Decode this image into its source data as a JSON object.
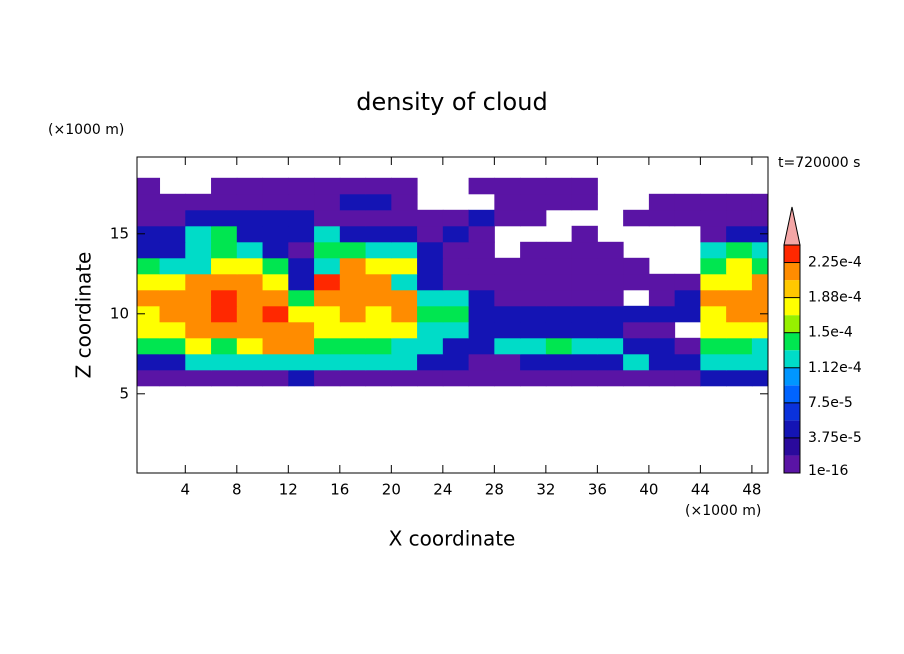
{
  "chart_data": {
    "type": "contour",
    "title": "density of cloud",
    "x_label": "X coordinate",
    "y_label": "Z coordinate",
    "x_unit": "(×1000 m)",
    "y_unit": "(×1000 m)",
    "time_label": "t=720000 s",
    "xlim": [
      0.25,
      49.25
    ],
    "ylim": [
      0.05,
      19.8
    ],
    "xticks": [
      4,
      8,
      12,
      16,
      20,
      24,
      28,
      32,
      36,
      40,
      44,
      48
    ],
    "yticks": [
      5,
      10,
      15
    ],
    "x": [
      1,
      3,
      5,
      7,
      9,
      11,
      13,
      15,
      17,
      19,
      21,
      23,
      25,
      27,
      29,
      31,
      33,
      35,
      37,
      39,
      41,
      43,
      45,
      47,
      49
    ],
    "y": [
      6,
      7,
      8,
      9,
      10,
      11,
      12,
      13,
      14,
      15,
      16,
      17,
      18
    ],
    "values": [
      [
        1e-05,
        1e-05,
        1e-05,
        1e-05,
        1e-05,
        1e-05,
        4.5e-05,
        1e-05,
        1e-05,
        1e-05,
        1e-05,
        1e-05,
        1e-05,
        1e-05,
        1e-05,
        1e-05,
        1e-05,
        1e-05,
        1e-05,
        1e-05,
        1e-05,
        1e-05,
        4.5e-05,
        4.5e-05,
        4.5e-05
      ],
      [
        4.5e-05,
        4.5e-05,
        0.000115,
        0.000115,
        0.000115,
        0.000115,
        0.000115,
        0.000115,
        0.000115,
        0.000115,
        0.000115,
        4.5e-05,
        4.5e-05,
        1e-05,
        1e-05,
        4.5e-05,
        4.5e-05,
        4.5e-05,
        4.5e-05,
        0.000115,
        4.5e-05,
        4.5e-05,
        0.000115,
        0.000115,
        0.000115
      ],
      [
        0.00014,
        0.00014,
        0.000175,
        0.00014,
        0.000175,
        0.00021,
        0.00021,
        0.00014,
        0.00014,
        0.00014,
        0.000115,
        0.000115,
        4.5e-05,
        4.5e-05,
        0.000115,
        0.000115,
        0.00014,
        0.000115,
        0.000115,
        4.5e-05,
        4.5e-05,
        1e-05,
        0.00014,
        0.00014,
        0.000115
      ],
      [
        0.000175,
        0.000175,
        0.00021,
        0.00021,
        0.00021,
        0.00021,
        0.00021,
        0.000175,
        0.000175,
        0.000175,
        0.000175,
        0.000115,
        0.000115,
        4.5e-05,
        4.5e-05,
        4.5e-05,
        4.5e-05,
        4.5e-05,
        4.5e-05,
        1e-05,
        1e-05,
        null,
        0.000175,
        0.000175,
        0.000175
      ],
      [
        0.000175,
        0.00021,
        0.00021,
        0.00023,
        0.00021,
        0.00023,
        0.000175,
        0.000175,
        0.00021,
        0.000175,
        0.00021,
        0.00014,
        0.00014,
        4.5e-05,
        4.5e-05,
        4.5e-05,
        4.5e-05,
        4.5e-05,
        4.5e-05,
        4.5e-05,
        4.5e-05,
        4.5e-05,
        0.000175,
        0.00021,
        0.00021
      ],
      [
        0.00021,
        0.00021,
        0.00021,
        0.00023,
        0.00021,
        0.00021,
        0.00014,
        0.00021,
        0.00021,
        0.00021,
        0.00021,
        0.000115,
        0.000115,
        4.5e-05,
        1e-05,
        1e-05,
        1e-05,
        1e-05,
        1e-05,
        null,
        1e-05,
        4.5e-05,
        0.00021,
        0.00021,
        0.00021
      ],
      [
        0.000175,
        0.000175,
        0.00021,
        0.00021,
        0.00021,
        0.000175,
        4.5e-05,
        0.00023,
        0.00021,
        0.00021,
        0.000115,
        4.5e-05,
        1e-05,
        1e-05,
        1e-05,
        1e-05,
        1e-05,
        1e-05,
        1e-05,
        1e-05,
        1e-05,
        1e-05,
        0.000175,
        0.000175,
        0.00021
      ],
      [
        0.00014,
        0.000115,
        0.000115,
        0.000175,
        0.000175,
        0.00014,
        4.5e-05,
        0.000115,
        0.00021,
        0.000175,
        0.000175,
        4.5e-05,
        1e-05,
        1e-05,
        1e-05,
        1e-05,
        1e-05,
        1e-05,
        1e-05,
        1e-05,
        null,
        null,
        0.00014,
        0.000175,
        0.00014
      ],
      [
        4.5e-05,
        4.5e-05,
        0.000115,
        0.00014,
        0.000115,
        4.5e-05,
        1e-05,
        0.00014,
        0.00014,
        0.000115,
        0.000115,
        4.5e-05,
        1e-05,
        1e-05,
        null,
        1e-05,
        1e-05,
        1e-05,
        1e-05,
        null,
        null,
        null,
        0.000115,
        0.00014,
        0.000115
      ],
      [
        4.5e-05,
        4.5e-05,
        0.000115,
        0.00014,
        4.5e-05,
        4.5e-05,
        4.5e-05,
        0.000115,
        4.5e-05,
        4.5e-05,
        4.5e-05,
        1e-05,
        4.5e-05,
        1e-05,
        null,
        null,
        null,
        1e-05,
        null,
        null,
        null,
        null,
        1e-05,
        4.5e-05,
        4.5e-05
      ],
      [
        1e-05,
        1e-05,
        4.5e-05,
        4.5e-05,
        4.5e-05,
        4.5e-05,
        4.5e-05,
        1e-05,
        1e-05,
        1e-05,
        1e-05,
        1e-05,
        1e-05,
        4.5e-05,
        1e-05,
        1e-05,
        null,
        null,
        null,
        1e-05,
        1e-05,
        1e-05,
        1e-05,
        1e-05,
        1e-05
      ],
      [
        1e-05,
        1e-05,
        1e-05,
        1e-05,
        1e-05,
        1e-05,
        1e-05,
        1e-05,
        4.5e-05,
        4.5e-05,
        1e-05,
        null,
        null,
        null,
        1e-05,
        1e-05,
        1e-05,
        1e-05,
        null,
        null,
        1e-05,
        1e-05,
        1e-05,
        1e-05,
        1e-05
      ],
      [
        1e-05,
        null,
        null,
        1e-05,
        1e-05,
        1e-05,
        1e-05,
        1e-05,
        1e-05,
        1e-05,
        1e-05,
        null,
        null,
        1e-05,
        1e-05,
        1e-05,
        1e-05,
        1e-05,
        null,
        null,
        null,
        null,
        null,
        null,
        null
      ]
    ],
    "levels": [
      1e-16,
      1.875e-05,
      3.75e-05,
      5.625e-05,
      7.5e-05,
      9.375e-05,
      0.0001125,
      0.00013125,
      0.00015,
      0.00016875,
      0.0001875,
      0.00020625,
      0.000225,
      0.00024375
    ],
    "colors": [
      "#5a14a5",
      "#2a0a9c",
      "#1414b4",
      "#0a32dc",
      "#0064ff",
      "#0096ff",
      "#00dcc8",
      "#00e650",
      "#96f000",
      "#ffff00",
      "#ffc800",
      "#ff8c00",
      "#ff2800"
    ],
    "extend_color": "#f4a6a6",
    "colorbar_ticks": [
      {
        "value": 1e-16,
        "label": "1e-16"
      },
      {
        "value": 3.75e-05,
        "label": "3.75e-5"
      },
      {
        "value": 7.5e-05,
        "label": "7.5e-5"
      },
      {
        "value": 0.0001125,
        "label": "1.12e-4"
      },
      {
        "value": 0.00015,
        "label": "1.5e-4"
      },
      {
        "value": 0.0001875,
        "label": "1.88e-4"
      },
      {
        "value": 0.000225,
        "label": "2.25e-4"
      }
    ]
  }
}
